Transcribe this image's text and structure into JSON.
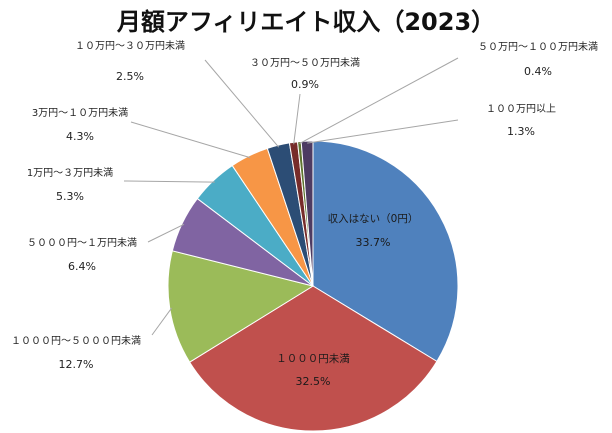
{
  "chart_data": {
    "type": "pie",
    "title": "月額アフィリエイト収入（2023）",
    "unit": "%",
    "slices": [
      {
        "name": "収入はない（0円）",
        "value": 33.7,
        "label": "33.7%",
        "color": "#4F81BD"
      },
      {
        "name": "１０００円未満",
        "value": 32.5,
        "label": "32.5%",
        "color": "#C0504D"
      },
      {
        "name": "１０００円～５０００円未満",
        "value": 12.7,
        "label": "12.7%",
        "color": "#9BBB59"
      },
      {
        "name": "５０００円～１万円未満",
        "value": 6.4,
        "label": "6.4%",
        "color": "#8064A2"
      },
      {
        "name": "1万円～３万円未満",
        "value": 5.3,
        "label": "5.3%",
        "color": "#4BACC6"
      },
      {
        "name": "3万円～１０万円未満",
        "value": 4.3,
        "label": "4.3%",
        "color": "#F79646"
      },
      {
        "name": "１０万円～３０万円未満",
        "value": 2.5,
        "label": "2.5%",
        "color": "#2C4D75"
      },
      {
        "name": "３０万円～５０万円未満",
        "value": 0.9,
        "label": "0.9%",
        "color": "#772C2A"
      },
      {
        "name": "５０万円～１００万円未満",
        "value": 0.4,
        "label": "0.4%",
        "color": "#5F7530"
      },
      {
        "name": "１００万円以上",
        "value": 1.3,
        "label": "1.3%",
        "color": "#4D3B62"
      }
    ]
  }
}
